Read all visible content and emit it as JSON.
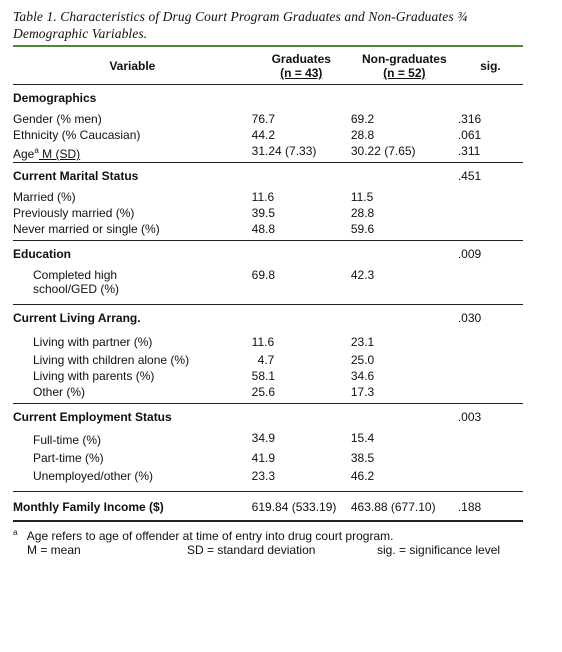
{
  "caption": "Table 1. Characteristics of Drug Court Program Graduates and Non-Graduates ¾ Demographic Variables.",
  "header": {
    "variable": "Variable",
    "graduates": "Graduates",
    "graduates_n": "(n = 43)",
    "nongraduates": "Non-graduates",
    "nongraduates_n": "(n = 52)",
    "sig": "sig."
  },
  "demographics": {
    "title": "Demographics",
    "rows": [
      {
        "label": "Gender (% men)",
        "g": "76.7",
        "ng": "69.2",
        "sig": ".316"
      },
      {
        "label": "Ethnicity (% Caucasian)",
        "g": "44.2",
        "ng": "28.8",
        "sig": ".061"
      },
      {
        "label": "Age",
        "label_sup": "a",
        "label_tail": " M (SD)",
        "g": "31.24 (7.33)",
        "ng": "30.22 (7.65)",
        "sig": ".311"
      }
    ]
  },
  "marital": {
    "title": "Current Marital Status",
    "sig": ".451",
    "rows": [
      {
        "label": "Married (%)",
        "g": "11.6",
        "ng": "11.5"
      },
      {
        "label": "Previously married (%)",
        "g": "39.5",
        "ng": "28.8"
      },
      {
        "label": "Never married or single (%)",
        "g": "48.8",
        "ng": "59.6"
      }
    ]
  },
  "education": {
    "title": "Education",
    "sig": ".009",
    "rows": [
      {
        "label": "Completed high school/GED (%)",
        "g": "69.8",
        "ng": "42.3"
      }
    ]
  },
  "living": {
    "title": "Current Living Arrang.",
    "sig": ".030",
    "rows": [
      {
        "label": "Living with partner (%)",
        "g": "11.6",
        "ng": "23.1"
      },
      {
        "label": "Living with children alone (%)",
        "g": "4.7",
        "ng": "25.0"
      },
      {
        "label": "Living with parents (%)",
        "g": "58.1",
        "ng": "34.6"
      },
      {
        "label": "Other (%)",
        "g": "25.6",
        "ng": "17.3"
      }
    ]
  },
  "employment": {
    "title": "Current Employment Status",
    "sig": ".003",
    "rows": [
      {
        "label": "Full-time (%)",
        "g": "34.9",
        "ng": "15.4"
      },
      {
        "label": "Part-time (%)",
        "g": "41.9",
        "ng": "38.5"
      },
      {
        "label": "Unemployed/other (%)",
        "g": "23.3",
        "ng": "46.2"
      }
    ]
  },
  "income": {
    "label": "Monthly Family Income ($)",
    "g": "619.84 (533.19)",
    "ng": "463.88 (677.10)",
    "sig": ".188"
  },
  "footnote": {
    "marker": "a",
    "line1": "Age refers to age of offender at time of entry into drug court program.",
    "m": "M = mean",
    "sd": "SD = standard deviation",
    "sig": "sig. = significance level"
  }
}
